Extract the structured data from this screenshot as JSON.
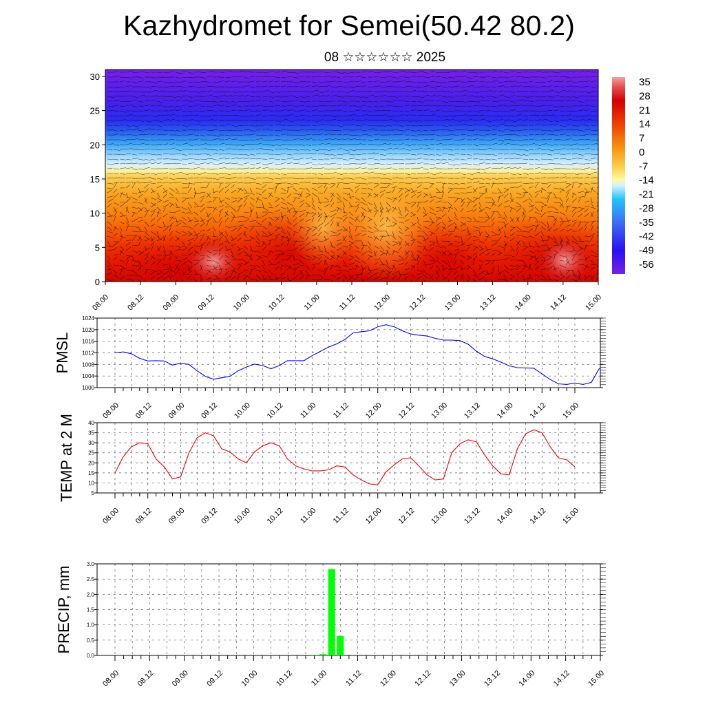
{
  "title": "Kazhydromet for Semei(50.42 80.2)",
  "subtitle": "08 ☆☆☆☆☆☆ 2025",
  "colors": {
    "pmsl_line": "#0000ff",
    "temp_line": "#ff0000",
    "precip_bar": "#00ff00",
    "axis": "#000000",
    "grid": "#555555"
  },
  "chart_data": [
    {
      "type": "heatmap",
      "name": "cross-section",
      "x_tick_labels": [
        "08.00",
        "08.12",
        "09.00",
        "09.12",
        "10.00",
        "10.12",
        "11.00",
        "11.12",
        "12.00",
        "12.12",
        "13.00",
        "13.12",
        "14.00",
        "14.12",
        "15.00"
      ],
      "y_ticks": [
        0,
        5,
        10,
        15,
        20,
        25,
        30
      ],
      "ylim": [
        0,
        31
      ],
      "colorbar": {
        "labels": [
          "35",
          "28",
          "21",
          "14",
          "7",
          "0",
          "-7",
          "-14",
          "-21",
          "-28",
          "-35",
          "-42",
          "-49",
          "-56"
        ],
        "range": [
          -60,
          38
        ]
      },
      "overlay": "wind barbs"
    },
    {
      "type": "line",
      "name": "pmsl",
      "ylabel": "PMSL",
      "ylim": [
        1000,
        1024
      ],
      "y_ticks": [
        1000,
        1004,
        1008,
        1012,
        1016,
        1020,
        1024
      ],
      "x_tick_labels": [
        "08.00",
        "08.12",
        "09.00",
        "09.12",
        "10.00",
        "10.12",
        "11.00",
        "11.12",
        "12.00",
        "12.12",
        "13.00",
        "13.12",
        "14.00",
        "14.12",
        "15.00"
      ],
      "x_step_hours": 3,
      "values": [
        1012.0,
        1012.3,
        1011.7,
        1010.1,
        1009.2,
        1009.3,
        1009.2,
        1007.8,
        1008.4,
        1008.0,
        1005.8,
        1003.9,
        1002.9,
        1003.4,
        1003.9,
        1005.8,
        1007.1,
        1008.1,
        1007.6,
        1006.5,
        1007.6,
        1009.3,
        1009.3,
        1009.3,
        1011.0,
        1012.5,
        1014.0,
        1015.1,
        1016.6,
        1018.9,
        1019.3,
        1019.6,
        1021.0,
        1021.7,
        1021.0,
        1019.6,
        1018.5,
        1018.1,
        1017.8,
        1017.0,
        1016.4,
        1016.4,
        1016.2,
        1015.0,
        1012.6,
        1010.8,
        1009.9,
        1008.8,
        1007.5,
        1006.9,
        1006.8,
        1006.7,
        1004.7,
        1002.8,
        1001.3,
        1001.1,
        1001.6,
        1001.1,
        1001.8,
        1006.7
      ]
    },
    {
      "type": "line",
      "name": "temp",
      "ylabel": "TEMP at 2 M",
      "ylim": [
        5,
        40
      ],
      "y_ticks": [
        5,
        10,
        15,
        20,
        25,
        30,
        35,
        40
      ],
      "x_tick_labels": [
        "08.00",
        "08.12",
        "09.00",
        "09.12",
        "10.00",
        "10.12",
        "11.00",
        "11.12",
        "12.00",
        "12.12",
        "13.00",
        "13.12",
        "14.00",
        "14.12",
        "15.00"
      ],
      "x_step_hours": 3,
      "values": [
        15.0,
        23.0,
        28.0,
        30.0,
        29.5,
        22.0,
        18.0,
        12.0,
        13.0,
        25.0,
        32.5,
        35.0,
        33.5,
        27.0,
        25.5,
        22.0,
        20.0,
        25.5,
        28.5,
        30.0,
        28.5,
        22.0,
        18.5,
        17.0,
        16.0,
        16.0,
        16.5,
        18.5,
        18.0,
        14.0,
        11.5,
        9.5,
        9.0,
        15.5,
        19.0,
        22.0,
        22.5,
        18.5,
        14.0,
        11.5,
        12.0,
        25.0,
        29.5,
        31.5,
        30.5,
        24.0,
        18.5,
        14.5,
        14.0,
        27.0,
        34.5,
        36.5,
        35.0,
        28.0,
        22.5,
        21.5,
        18.0
      ]
    },
    {
      "type": "bar",
      "name": "precip",
      "ylabel": "PRECIP, mm",
      "ylim": [
        0,
        3.0
      ],
      "y_ticks": [
        "0.0",
        "0.5",
        "1.0",
        "1.5",
        "2.0",
        "2.5",
        "3.0"
      ],
      "x_tick_labels": [
        "08.00",
        "08.12",
        "09.00",
        "09.12",
        "10.00",
        "10.12",
        "11.00",
        "11.12",
        "12.00",
        "12.12",
        "13.00",
        "13.12",
        "14.00",
        "14.12",
        "15.00"
      ],
      "bars": [
        {
          "x_hours": 69,
          "value": 0.02
        },
        {
          "x_hours": 72,
          "value": 0.04
        },
        {
          "x_hours": 75,
          "value": 2.83
        },
        {
          "x_hours": 78,
          "value": 0.64
        }
      ]
    }
  ]
}
